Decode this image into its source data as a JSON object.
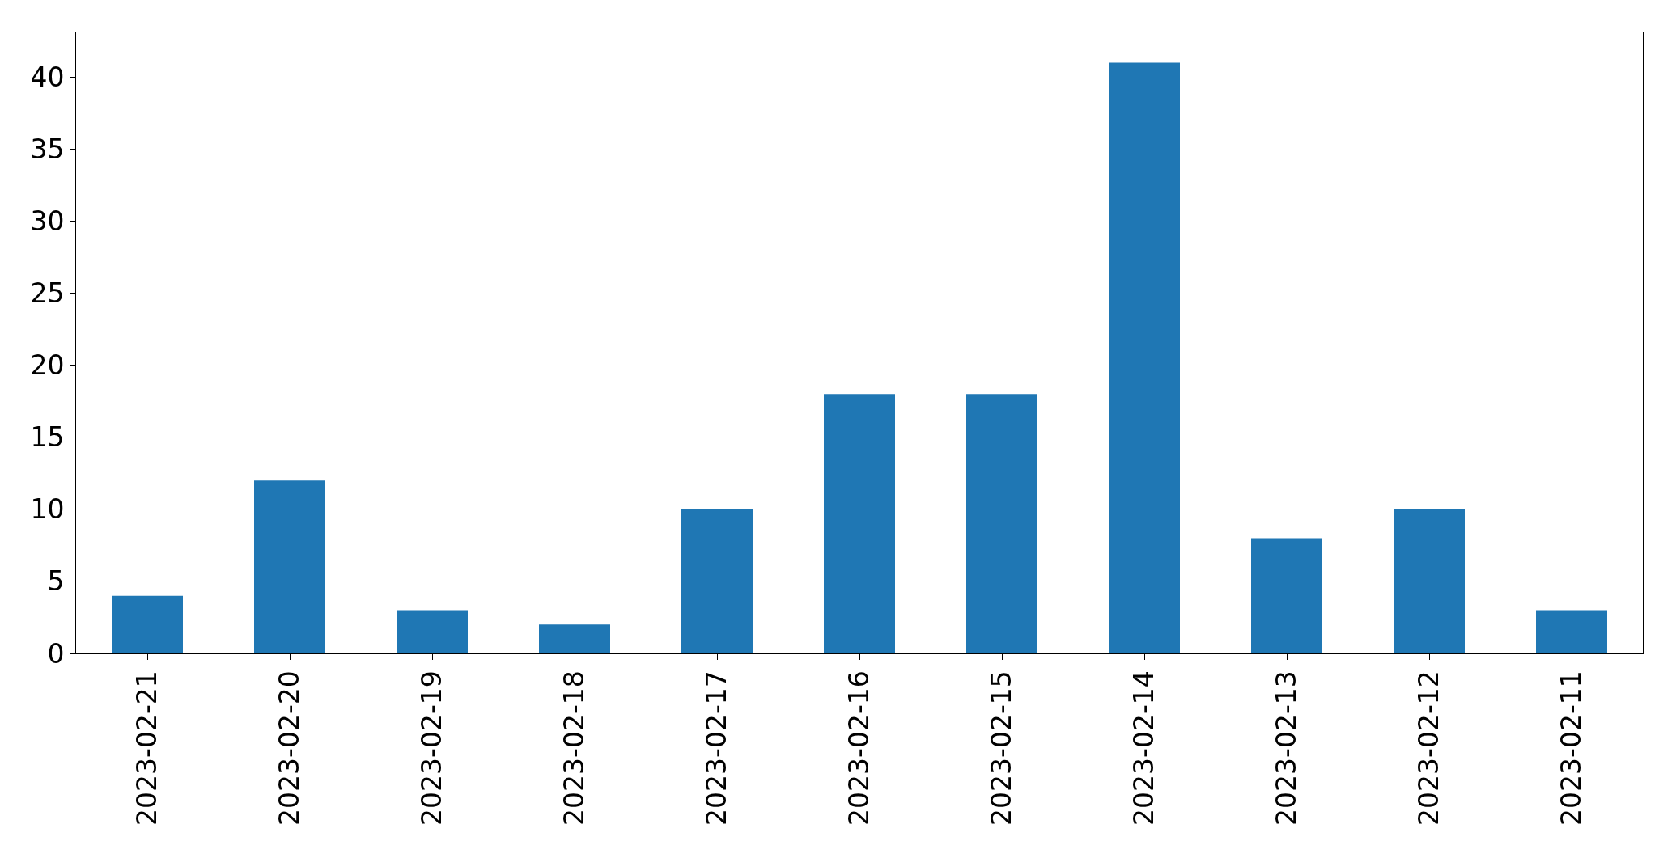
{
  "chart_data": {
    "type": "bar",
    "categories": [
      "2023-02-21",
      "2023-02-20",
      "2023-02-19",
      "2023-02-18",
      "2023-02-17",
      "2023-02-16",
      "2023-02-15",
      "2023-02-14",
      "2023-02-13",
      "2023-02-12",
      "2023-02-11"
    ],
    "values": [
      4,
      12,
      3,
      2,
      10,
      18,
      18,
      41,
      8,
      10,
      3
    ],
    "color": "#1f77b4",
    "ylim": [
      0,
      43.1
    ],
    "yticks": [
      0,
      5,
      10,
      15,
      20,
      25,
      30,
      35,
      40
    ]
  }
}
